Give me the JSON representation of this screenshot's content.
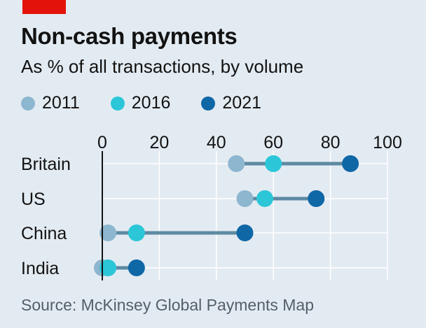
{
  "header": {
    "title": "Non-cash payments",
    "subtitle": "As % of all transactions, by volume"
  },
  "legend": [
    {
      "label": "2011",
      "color": "#8db6cf"
    },
    {
      "label": "2016",
      "color": "#2bc7d8"
    },
    {
      "label": "2021",
      "color": "#0f67a6"
    }
  ],
  "footer": {
    "source": "Source: McKinsey Global Payments Map"
  },
  "colors": {
    "connector": "#5d8aa2",
    "grid": "#ffffff",
    "zero_line": "#121212"
  },
  "chart_data": {
    "type": "dot-plot",
    "title": "Non-cash payments",
    "subtitle": "As % of all transactions, by volume",
    "xlim": [
      0,
      100
    ],
    "xticks": [
      0,
      20,
      40,
      60,
      80,
      100
    ],
    "categories": [
      "Britain",
      "US",
      "China",
      "India"
    ],
    "series": [
      {
        "name": "2011",
        "values": [
          47,
          50,
          2,
          0
        ]
      },
      {
        "name": "2016",
        "values": [
          60,
          57,
          12,
          2
        ]
      },
      {
        "name": "2021",
        "values": [
          87,
          75,
          50,
          12
        ]
      }
    ],
    "grid": true,
    "legend_position": "top-left"
  }
}
